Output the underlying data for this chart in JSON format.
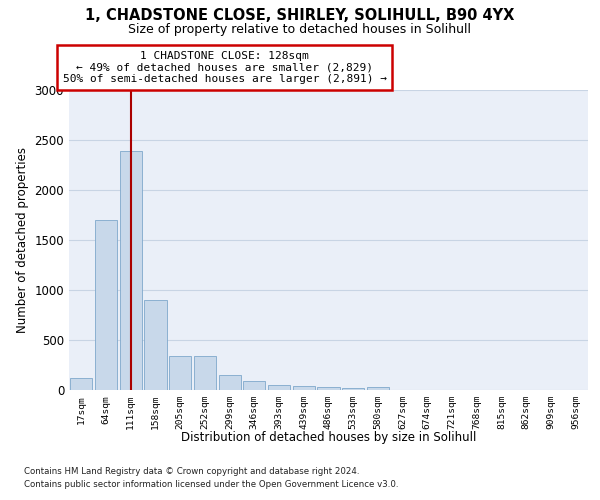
{
  "title_line1": "1, CHADSTONE CLOSE, SHIRLEY, SOLIHULL, B90 4YX",
  "title_line2": "Size of property relative to detached houses in Solihull",
  "xlabel": "Distribution of detached houses by size in Solihull",
  "ylabel": "Number of detached properties",
  "categories": [
    "17sqm",
    "64sqm",
    "111sqm",
    "158sqm",
    "205sqm",
    "252sqm",
    "299sqm",
    "346sqm",
    "393sqm",
    "439sqm",
    "486sqm",
    "533sqm",
    "580sqm",
    "627sqm",
    "674sqm",
    "721sqm",
    "768sqm",
    "815sqm",
    "862sqm",
    "909sqm",
    "956sqm"
  ],
  "values": [
    120,
    1700,
    2390,
    900,
    340,
    340,
    155,
    90,
    55,
    40,
    35,
    25,
    30,
    5,
    3,
    2,
    1,
    1,
    1,
    0,
    0
  ],
  "bar_color": "#c8d8ea",
  "bar_edge_color": "#7fa8cc",
  "grid_color": "#c8d4e4",
  "bg_color": "#eaeff8",
  "red_line_x": 2.0,
  "annotation_text": "1 CHADSTONE CLOSE: 128sqm\n← 49% of detached houses are smaller (2,829)\n50% of semi-detached houses are larger (2,891) →",
  "annotation_box_color": "#ffffff",
  "annotation_border_color": "#cc0000",
  "footnote1": "Contains HM Land Registry data © Crown copyright and database right 2024.",
  "footnote2": "Contains public sector information licensed under the Open Government Licence v3.0.",
  "ylim": [
    0,
    3000
  ],
  "yticks": [
    0,
    500,
    1000,
    1500,
    2000,
    2500,
    3000
  ]
}
